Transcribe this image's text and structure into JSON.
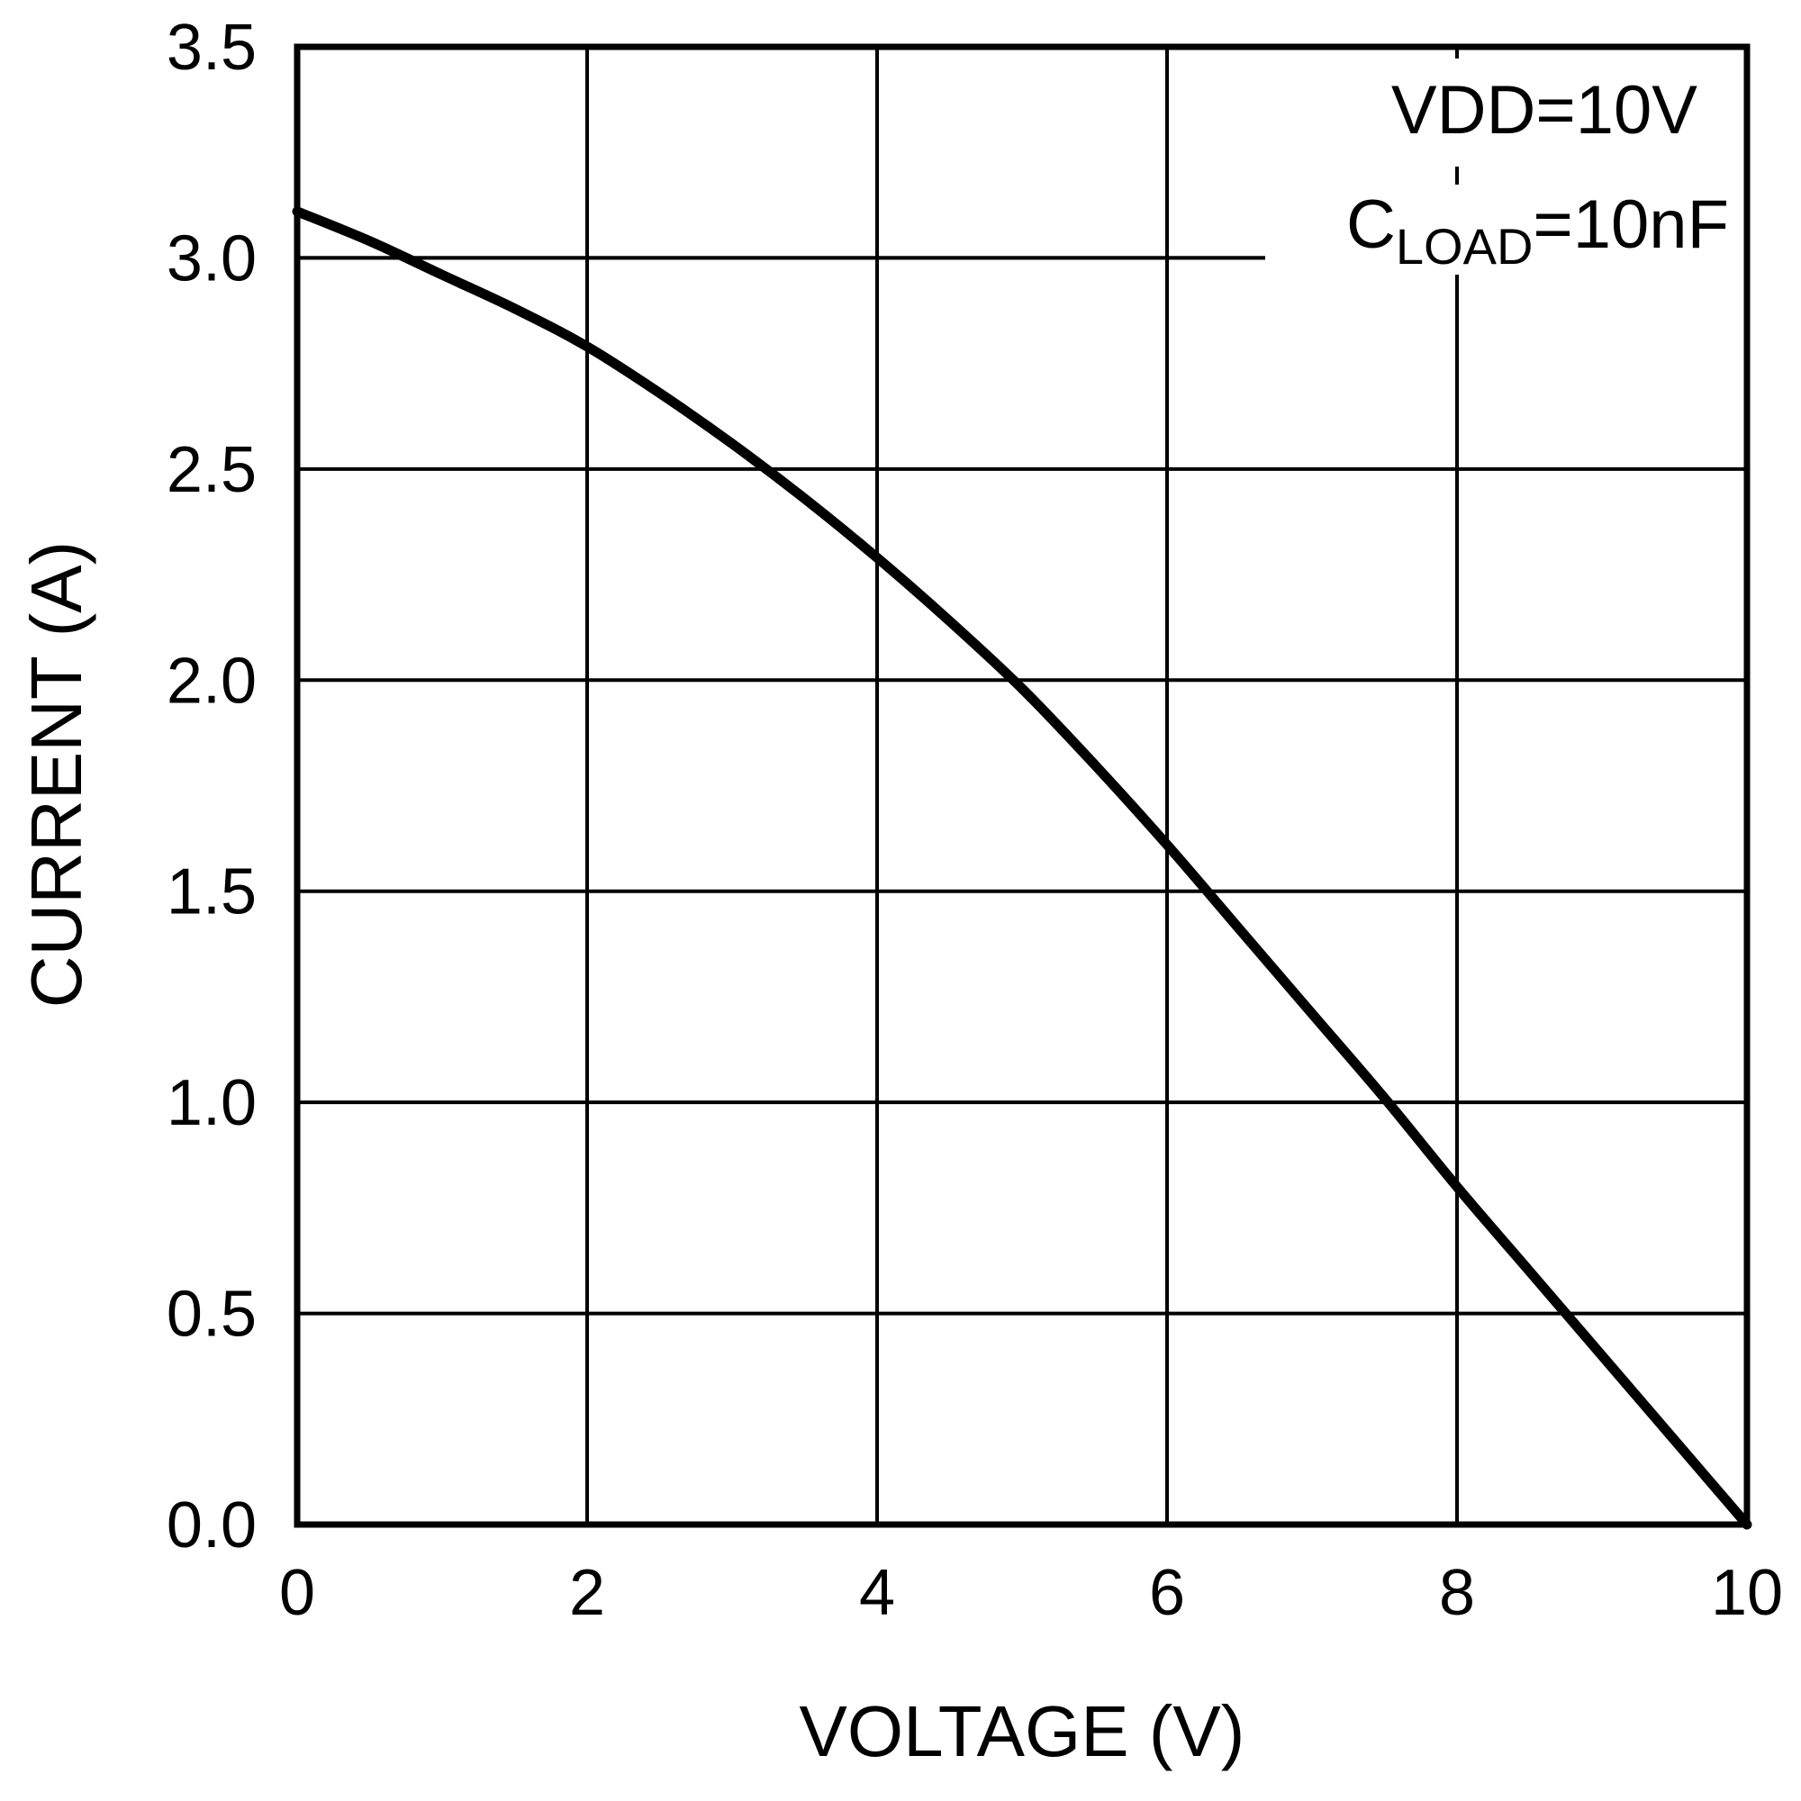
{
  "chart_data": {
    "type": "line",
    "title": "",
    "xlabel": "VOLTAGE (V)",
    "ylabel": "CURRENT (A)",
    "xlim": [
      0,
      10
    ],
    "ylim": [
      0,
      3.5
    ],
    "grid": true,
    "x_ticks": [
      "0",
      "2",
      "4",
      "6",
      "8",
      "10"
    ],
    "y_ticks": [
      "0.0",
      "0.5",
      "1.0",
      "1.5",
      "2.0",
      "2.5",
      "3.0",
      "3.5"
    ],
    "annotations": {
      "vdd": "VDD=10V",
      "cload_main": "C",
      "cload_sub": "LOAD",
      "cload_value": "=10nF"
    },
    "series": [
      {
        "x": [
          0,
          0.5,
          1.0,
          1.5,
          2.0,
          2.5,
          3.0,
          3.5,
          4.0,
          4.5,
          5.0,
          5.5,
          6.0,
          6.5,
          7.0,
          7.5,
          8.0,
          8.5,
          9.0,
          9.5,
          10.0
        ],
        "values": [
          3.11,
          3.04,
          2.96,
          2.88,
          2.79,
          2.68,
          2.56,
          2.43,
          2.29,
          2.14,
          1.98,
          1.8,
          1.61,
          1.41,
          1.21,
          1.01,
          0.8,
          0.6,
          0.4,
          0.2,
          0.0
        ]
      }
    ],
    "style": {
      "line_color": "#000000",
      "grid_color": "#000000",
      "background": "#ffffff"
    }
  }
}
